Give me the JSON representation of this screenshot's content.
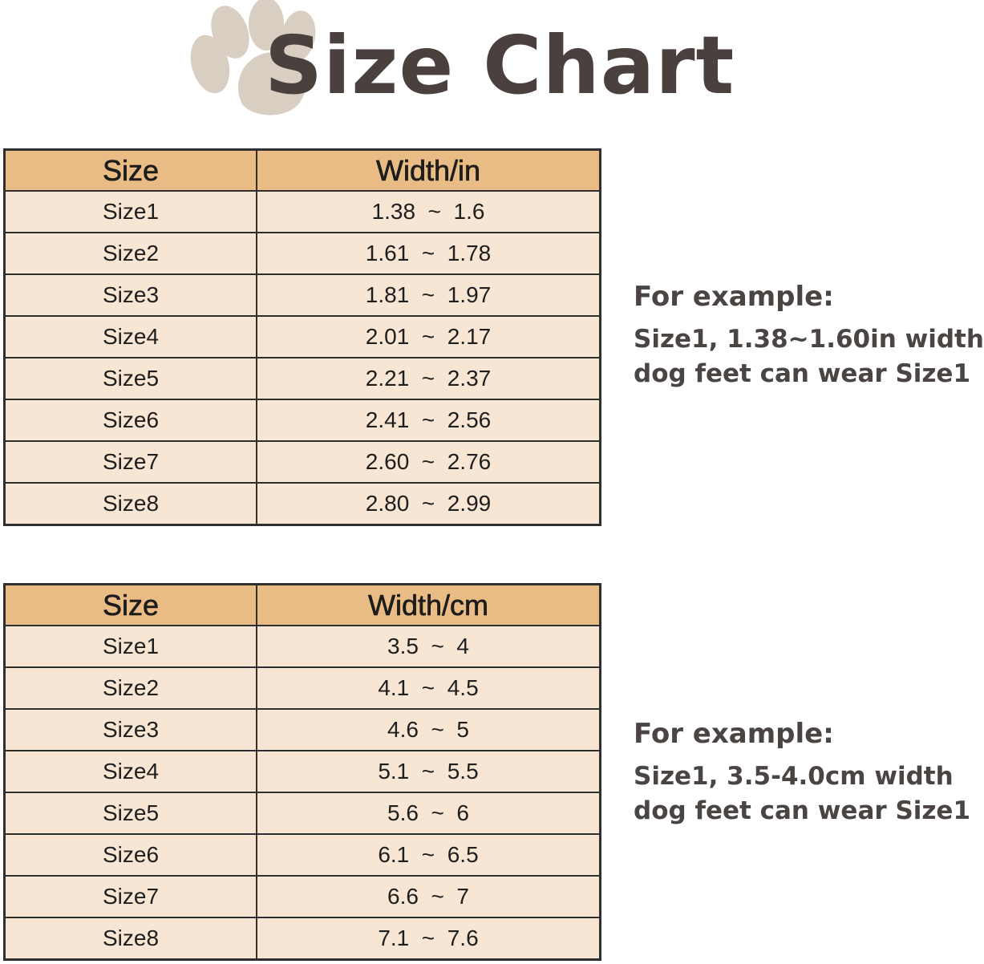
{
  "title": "Size Chart",
  "colors": {
    "header_bg": "#e9bc85",
    "row_bg": "#f6e6d3",
    "paw": "#d8cfc2",
    "title": "#4a403e"
  },
  "inch_table": {
    "headers": [
      "Size",
      "Width/in"
    ],
    "rows": [
      [
        "Size1",
        "1.38  ~  1.6"
      ],
      [
        "Size2",
        "1.61  ~  1.78"
      ],
      [
        "Size3",
        "1.81  ~  1.97"
      ],
      [
        "Size4",
        "2.01  ~  2.17"
      ],
      [
        "Size5",
        "2.21  ~  2.37"
      ],
      [
        "Size6",
        "2.41  ~  2.56"
      ],
      [
        "Size7",
        "2.60  ~  2.76"
      ],
      [
        "Size8",
        "2.80  ~  2.99"
      ]
    ]
  },
  "cm_table": {
    "headers": [
      "Size",
      "Width/cm"
    ],
    "rows": [
      [
        "Size1",
        "3.5  ~  4"
      ],
      [
        "Size2",
        "4.1  ~  4.5"
      ],
      [
        "Size3",
        "4.6  ~  5"
      ],
      [
        "Size4",
        "5.1  ~  5.5"
      ],
      [
        "Size5",
        "5.6  ~  6"
      ],
      [
        "Size6",
        "6.1  ~  6.5"
      ],
      [
        "Size7",
        "6.6  ~  7"
      ],
      [
        "Size8",
        "7.1  ~  7.6"
      ]
    ]
  },
  "inch_example": {
    "heading": "For example:",
    "line1": "Size1, 1.38~1.60in width",
    "line2": "dog feet can wear Size1"
  },
  "cm_example": {
    "heading": "For example:",
    "line1": "Size1, 3.5-4.0cm width",
    "line2": "dog feet can wear Size1"
  }
}
